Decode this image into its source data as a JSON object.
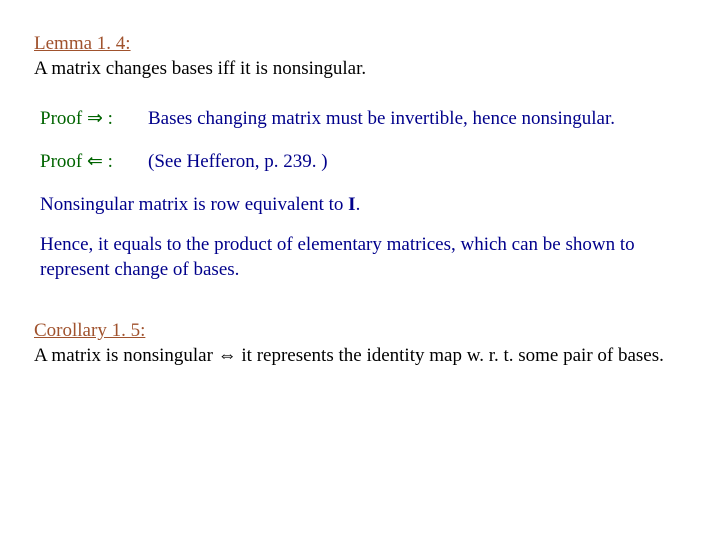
{
  "colors": {
    "heading": "#a0522d",
    "proof_label": "#006400",
    "proof_text": "#00008b",
    "body_text": "#000000",
    "background": "#ffffff"
  },
  "typography": {
    "font_family": "Times New Roman",
    "base_fontsize_pt": 14
  },
  "lemma": {
    "title": "Lemma 1. 4:",
    "statement": "A matrix changes bases iff it is nonsingular."
  },
  "proofs": [
    {
      "label": "Proof ⇒ :",
      "text": "Bases changing matrix must be invertible, hence nonsingular."
    },
    {
      "label": "Proof ⇐ :",
      "text": "(See Hefferon, p. 239. )"
    }
  ],
  "notes": [
    {
      "before": "Nonsingular matrix is row equivalent to ",
      "bold": "I",
      "after": "."
    },
    {
      "before": "Hence, it equals to the product of elementary matrices, which can be shown to represent change of bases.",
      "bold": "",
      "after": ""
    }
  ],
  "corollary": {
    "title": "Corollary 1. 5:",
    "statement_before": "A matrix is nonsingular ",
    "statement_symbol": "⇔",
    "statement_after": " it represents the identity map w. r. t. some pair of bases."
  }
}
